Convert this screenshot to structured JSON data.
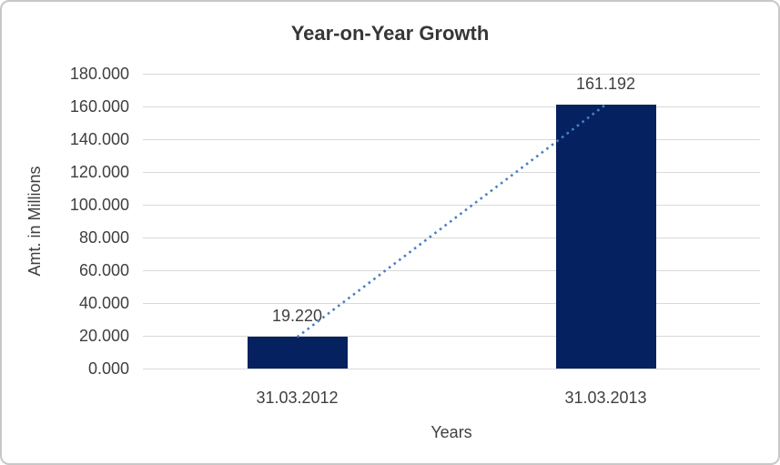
{
  "chart_data": {
    "type": "bar",
    "title": "Year-on-Year Growth",
    "xlabel": "Years",
    "ylabel": "Amt. in Millions",
    "categories": [
      "31.03.2012",
      "31.03.2013"
    ],
    "values": [
      19.22,
      161.192
    ],
    "data_labels": [
      "19.220",
      "161.192"
    ],
    "ylim": [
      0,
      180
    ],
    "ytick_step": 20,
    "ytick_labels": [
      "0.000",
      "20.000",
      "40.000",
      "60.000",
      "80.000",
      "100.000",
      "120.000",
      "140.000",
      "160.000",
      "180.000"
    ],
    "grid": true,
    "legend_position": "none",
    "colors": {
      "bar": "#062160",
      "trendline": "#4a80c4",
      "gridline": "#d9d9d9",
      "text": "#3f3f3f",
      "title": "#363636",
      "chart_border": "#c8c8c8",
      "background": "#ffffff"
    },
    "trendline": {
      "type": "linear",
      "style": "dotted",
      "from_point": 0,
      "to_point": 1
    }
  }
}
